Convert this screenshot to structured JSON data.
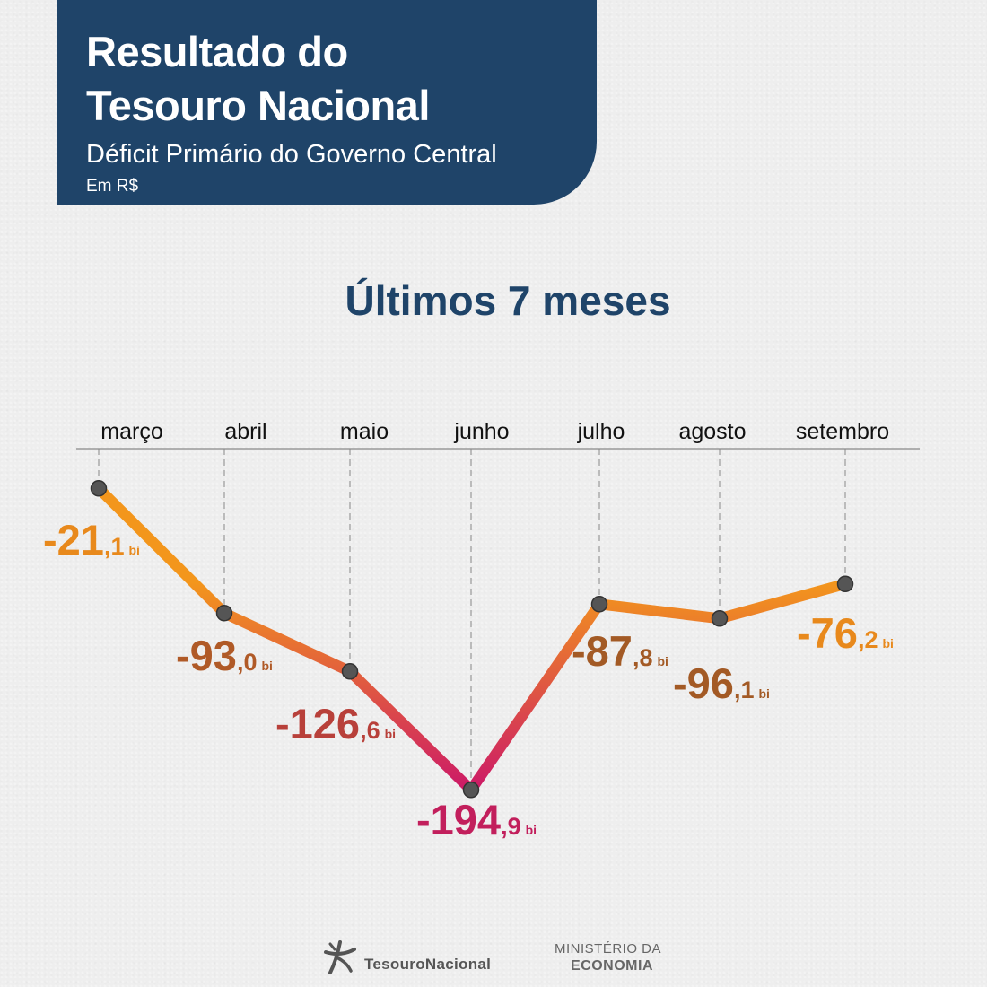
{
  "header": {
    "title_line1": "Resultado do",
    "title_line2": "Tesouro Nacional",
    "subtitle": "Déficit Primário do Governo Central",
    "unit": "Em R$"
  },
  "chart_title": "Últimos 7 meses",
  "chart_data": {
    "type": "line",
    "categories": [
      "março",
      "abril",
      "maio",
      "junho",
      "julho",
      "agosto",
      "setembro"
    ],
    "values": [
      -21.1,
      -93.0,
      -126.6,
      -194.9,
      -87.8,
      -96.1,
      -76.2
    ],
    "value_labels": [
      {
        "int": "-21",
        "dec": ",1",
        "unit": "bi"
      },
      {
        "int": "-93",
        "dec": ",0",
        "unit": "bi"
      },
      {
        "int": "-126",
        "dec": ",6",
        "unit": "bi"
      },
      {
        "int": "-194",
        "dec": ",9",
        "unit": "bi"
      },
      {
        "int": "-87",
        "dec": ",8",
        "unit": "bi"
      },
      {
        "int": "-96",
        "dec": ",1",
        "unit": "bi"
      },
      {
        "int": "-76",
        "dec": ",2",
        "unit": "bi"
      }
    ],
    "label_colors": [
      "#e8891c",
      "#b05a27",
      "#b8403a",
      "#c21f5c",
      "#a35a25",
      "#a35a25",
      "#e8891c"
    ],
    "line_gradient": {
      "top": "#f3961c",
      "bottom": "#cc1a67"
    },
    "marker_color": "#555555",
    "ylim": [
      -210,
      0
    ],
    "xlabel": "",
    "ylabel": "",
    "grid": "vertical dashed guides"
  },
  "footer": {
    "tesouro_logo": "TesouroNacional",
    "ministerio_line1": "MINISTÉRIO DA",
    "ministerio_line2": "ECONOMIA"
  }
}
